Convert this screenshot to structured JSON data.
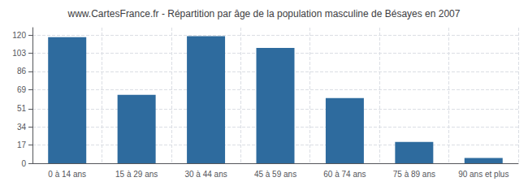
{
  "chart_data": {
    "type": "bar",
    "title": "www.CartesFrance.fr - Répartition par âge de la population masculine de Bésayes en 2007",
    "categories": [
      "0 à 14 ans",
      "15 à 29 ans",
      "30 à 44 ans",
      "45 à 59 ans",
      "60 à 74 ans",
      "75 à 89 ans",
      "90 ans et plus"
    ],
    "values": [
      118,
      64,
      119,
      108,
      61,
      20,
      5
    ],
    "color": "#2e6b9e",
    "ylim": [
      0,
      127
    ],
    "yticks": [
      0,
      17,
      34,
      51,
      69,
      86,
      103,
      120
    ],
    "grid": true
  }
}
